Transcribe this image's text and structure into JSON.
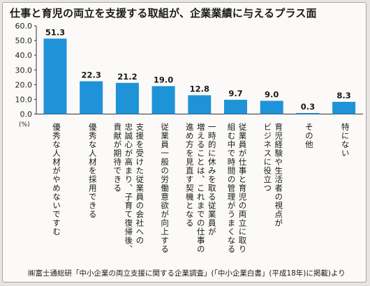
{
  "title": "仕事と育児の両立を支援する取組が、企業業績に与えるプラス面",
  "source": "㈱富士通総研「中小企業の両立支援に関する企業調査」(「中小企業白書」(平成18年)に掲載)より",
  "chart_data": {
    "type": "bar",
    "ylabel": "(%)",
    "ylim": [
      0,
      60
    ],
    "yticks": [
      0,
      10,
      20,
      30,
      40,
      50,
      60
    ],
    "bar_color": "#1f93d8",
    "categories": [
      "優秀な人材がやめないですむ",
      "優秀な人材を採用できる",
      "支援を受けた従業員の会社への忠誠心が高まり、子育て復帰後、貢献が期待できる",
      "従業員一般の労働意欲が向上する",
      "一時的に休みを取る従業員が増えることは、これまでの仕事の進め方を見直す契機となる",
      "従業員が仕事と育児の両立に取り組む中で時間の管理がうまくなる",
      "育児経験や生活者の視点がビジネスに役立つ",
      "その他",
      "特にない"
    ],
    "category_lines": [
      [
        "優秀な人材がやめないですむ"
      ],
      [
        "優秀な人材を採用できる"
      ],
      [
        "支援を受けた従業員の会社への",
        "忠誠心が高まり、子育て復帰後、",
        "貢献が期待できる"
      ],
      [
        "従業員一般の労働意欲が向上する"
      ],
      [
        "一時的に休みを取る従業員が",
        "増えることは、これまでの仕事の",
        "進め方を見直す契機となる"
      ],
      [
        "従業員が仕事と育児の両立に取り",
        "組む中で時間の管理がうまくなる"
      ],
      [
        "育児経験や生活者の視点が",
        "ビジネスに役立つ"
      ],
      [
        "その他"
      ],
      [
        "特にない"
      ]
    ],
    "values": [
      51.3,
      22.3,
      21.2,
      19.0,
      12.8,
      9.7,
      9.0,
      0.3,
      8.3
    ],
    "value_labels": [
      "51.3",
      "22.3",
      "21.2",
      "19.0",
      "12.8",
      "9.7",
      "9.0",
      "0.3",
      "8.3"
    ]
  }
}
